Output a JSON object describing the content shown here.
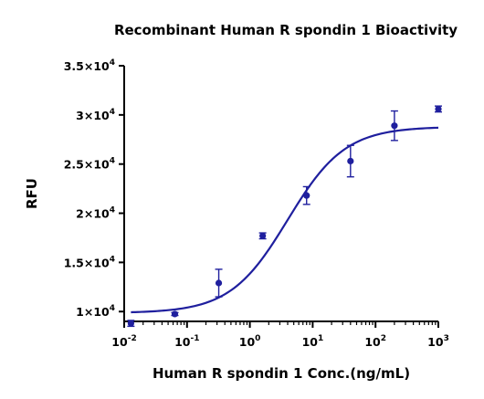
{
  "chart_data": {
    "type": "scatter",
    "title": "Recombinant Human R spondin 1 Bioactivity",
    "xlabel": "Human R spondin 1 Conc.(ng/mL)",
    "ylabel": "RFU",
    "x_scale": "log",
    "xlim": [
      0.01,
      1000
    ],
    "ylim": [
      9000,
      35000
    ],
    "grid": false,
    "colors": {
      "series": "#1f1f9e",
      "axis": "#000000"
    },
    "x_ticks": [
      {
        "value": 0.01,
        "base": "10",
        "exp": "-2"
      },
      {
        "value": 0.1,
        "base": "10",
        "exp": "-1"
      },
      {
        "value": 1,
        "base": "10",
        "exp": "0"
      },
      {
        "value": 10,
        "base": "10",
        "exp": "1"
      },
      {
        "value": 100,
        "base": "10",
        "exp": "2"
      },
      {
        "value": 1000,
        "base": "10",
        "exp": "3"
      }
    ],
    "y_ticks": [
      {
        "value": 10000,
        "mant": "1",
        "exp": "4"
      },
      {
        "value": 15000,
        "mant": "1.5",
        "exp": "4"
      },
      {
        "value": 20000,
        "mant": "2",
        "exp": "4"
      },
      {
        "value": 25000,
        "mant": "2.5",
        "exp": "4"
      },
      {
        "value": 30000,
        "mant": "3",
        "exp": "4"
      },
      {
        "value": 35000,
        "mant": "3.5",
        "exp": "4"
      }
    ],
    "points": [
      {
        "x": 0.0128,
        "y": 8800,
        "err": 300
      },
      {
        "x": 0.064,
        "y": 9750,
        "err": 150
      },
      {
        "x": 0.32,
        "y": 12900,
        "err": 1400
      },
      {
        "x": 1.6,
        "y": 17700,
        "err": 300
      },
      {
        "x": 8,
        "y": 21800,
        "err": 900
      },
      {
        "x": 40,
        "y": 25300,
        "err": 1600
      },
      {
        "x": 200,
        "y": 28900,
        "err": 1500
      },
      {
        "x": 1000,
        "y": 30600,
        "err": 300
      }
    ],
    "fit": {
      "model": "4PL",
      "bottom": 9850,
      "top": 28800,
      "ec50": 4.0,
      "hill": 0.95
    }
  }
}
